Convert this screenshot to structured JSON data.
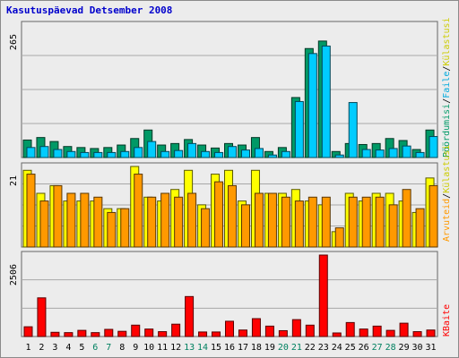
{
  "title": "Kasutuspäevad Detsember 2008",
  "chart_data": [
    {
      "type": "bar",
      "panel": "top",
      "ymax_label": "265",
      "ylim": [
        0,
        265
      ],
      "categories": [
        "1",
        "2",
        "3",
        "4",
        "5",
        "6",
        "7",
        "8",
        "9",
        "10",
        "11",
        "12",
        "13",
        "14",
        "15",
        "16",
        "17",
        "18",
        "19",
        "20",
        "21",
        "22",
        "23",
        "24",
        "25",
        "26",
        "27",
        "28",
        "29",
        "30",
        "31"
      ],
      "series": [
        {
          "name": "Pöördumisi",
          "color": "#009966",
          "values": [
            35,
            40,
            32,
            22,
            20,
            18,
            20,
            25,
            38,
            55,
            25,
            28,
            36,
            25,
            19,
            28,
            25,
            40,
            12,
            20,
            120,
            218,
            233,
            12,
            28,
            26,
            28,
            38,
            34,
            16,
            55
          ]
        },
        {
          "name": "Faile",
          "color": "#00ccff",
          "values": [
            20,
            22,
            16,
            12,
            10,
            10,
            10,
            12,
            20,
            32,
            12,
            14,
            28,
            12,
            10,
            22,
            15,
            18,
            5,
            12,
            112,
            208,
            223,
            5,
            110,
            16,
            15,
            18,
            23,
            10,
            42
          ]
        }
      ],
      "legend": [
        "Pöördumisi",
        "/",
        "Faile",
        "/",
        "Külastusi"
      ]
    },
    {
      "type": "bar",
      "panel": "middle",
      "ymax_label": "21",
      "ylim": [
        0,
        21
      ],
      "series": [
        {
          "name": "Külastusi",
          "color": "#ffff00",
          "values": [
            20,
            14,
            16,
            12,
            12,
            12,
            10,
            10,
            21,
            13,
            12,
            15,
            20,
            11,
            19,
            20,
            12,
            20,
            14,
            14,
            15,
            12,
            11,
            4,
            14,
            12,
            14,
            14,
            12,
            9,
            18
          ]
        },
        {
          "name": "Arvuteid",
          "color": "#ff9900",
          "values": [
            19,
            12,
            16,
            14,
            14,
            13,
            9,
            10,
            19,
            13,
            14,
            13,
            14,
            10,
            17,
            16,
            11,
            14,
            14,
            13,
            12,
            13,
            13,
            5,
            13,
            13,
            13,
            11,
            15,
            10,
            16
          ]
        }
      ],
      "legend": [
        "Arvuteid",
        "/",
        "Külastusi"
      ]
    },
    {
      "type": "bar",
      "panel": "bottom",
      "ymax_label": "2506",
      "ylim": [
        0,
        2506
      ],
      "series": [
        {
          "name": "KBaite",
          "color": "#ff0000",
          "values": [
            300,
            1190,
            130,
            120,
            190,
            120,
            220,
            160,
            350,
            230,
            150,
            380,
            1230,
            140,
            140,
            470,
            200,
            550,
            320,
            180,
            520,
            350,
            2506,
            110,
            430,
            230,
            320,
            190,
            410,
            150,
            200
          ]
        }
      ],
      "legend": [
        "KBaite"
      ]
    }
  ],
  "weekend_days": [
    "6",
    "7",
    "13",
    "14",
    "20",
    "21",
    "27",
    "28"
  ]
}
